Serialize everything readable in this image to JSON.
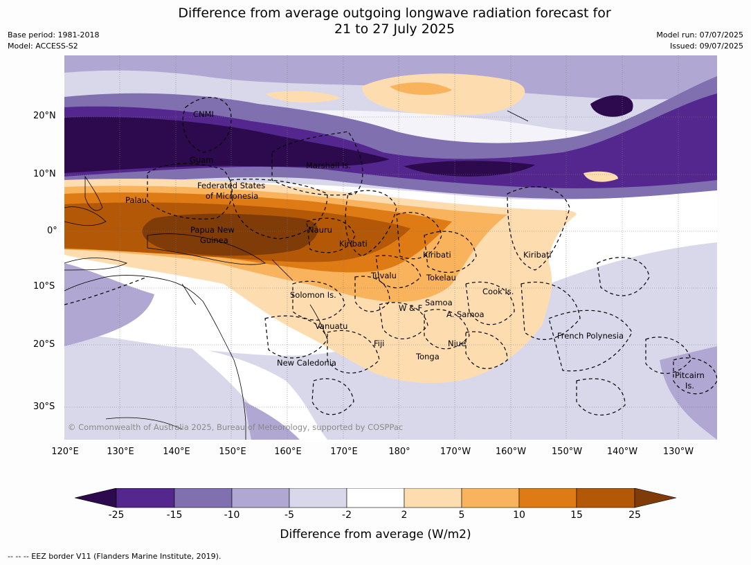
{
  "title_line1": "Difference from average outgoing longwave radiation forecast for",
  "title_line2": "21 to 27 July 2025",
  "base_period": "Base period: 1981-2018",
  "model": "Model: ACCESS-S2",
  "model_run": "Model run: 07/07/2025",
  "issued": "Issued: 09/07/2025",
  "lat_labels": [
    "20°N",
    "10°N",
    "0°",
    "10°S",
    "20°S",
    "30°S"
  ],
  "lon_labels": [
    "120°E",
    "130°E",
    "140°E",
    "150°E",
    "160°E",
    "170°E",
    "180°",
    "170°W",
    "160°W",
    "150°W",
    "140°W",
    "130°W"
  ],
  "places": {
    "cnmi": "CNMI",
    "guam": "Guam",
    "marshall": "Marshall Is.",
    "fsm1": "Federated States",
    "fsm2": "of Micronesia",
    "palau": "Palau",
    "png1": "Papua New",
    "png2": "Guinea",
    "nauru": "Nauru",
    "kiribati_w": "Kiribati",
    "kiribati_c": "Kiribati",
    "kiribati_e": "Kiribati",
    "tuvalu": "Tuvalu",
    "tokelau": "Tokelau",
    "solomon": "Solomon Is.",
    "samoa": "Samoa",
    "wf": "W & F",
    "asamoa": "A. Samoa",
    "cook": "Cook Is.",
    "vanuatu": "Vanuatu",
    "fiji": "Fiji",
    "niue": "Niue",
    "tonga": "Tonga",
    "frenchpoly": "French Polynesia",
    "newcal": "New Caledonia",
    "pitcairn1": "Pitcairn",
    "pitcairn2": "Is."
  },
  "copyright": "© Commonwealth of Australia 2025, Bureau of Meteorology, supported by COSPPac",
  "colorbar": {
    "ticks": [
      "-25",
      "-15",
      "-10",
      "-5",
      "-2",
      "2",
      "5",
      "10",
      "15",
      "25"
    ],
    "colors": [
      "#2d0a4e",
      "#54278f",
      "#8070b0",
      "#b0a8d2",
      "#d9d8ea",
      "#ffffff",
      "#fddcb0",
      "#f8b35c",
      "#de7b14",
      "#b35806",
      "#7f3b08"
    ],
    "label": "Difference from average (W/m2)"
  },
  "footnote": "--  --  -- EEZ border V11 (Flanders Marine Institute, 2019)."
}
